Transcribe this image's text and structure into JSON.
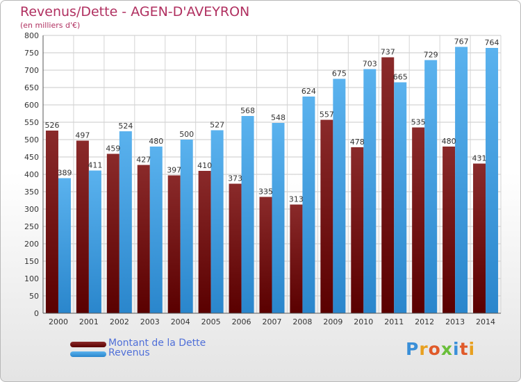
{
  "header": {
    "title": "Revenus/Dette - AGEN-D'AVEYRON",
    "subtitle": "(en milliers d'€)"
  },
  "legend": [
    {
      "label": "Montant de la Dette",
      "color": "#7a1a1a"
    },
    {
      "label": "Revenus",
      "color": "#3aa0e8"
    }
  ],
  "logo": {
    "text": "Proxiti",
    "letters": [
      {
        "ch": "P",
        "color": "#3a8fd8"
      },
      {
        "ch": "r",
        "color": "#e8a020"
      },
      {
        "ch": "o",
        "color": "#e05a2a"
      },
      {
        "ch": "x",
        "color": "#6abf3a"
      },
      {
        "ch": "i",
        "color": "#3a8fd8"
      },
      {
        "ch": "t",
        "color": "#e05a2a"
      },
      {
        "ch": "i",
        "color": "#e8a020"
      }
    ]
  },
  "chart_data": {
    "type": "bar",
    "categories": [
      "2000",
      "2001",
      "2002",
      "2003",
      "2004",
      "2005",
      "2006",
      "2007",
      "2008",
      "2009",
      "2010",
      "2011",
      "2012",
      "2013",
      "2014"
    ],
    "series": [
      {
        "name": "Montant de la Dette",
        "color": "#7a1a1a",
        "values": [
          526,
          497,
          459,
          427,
          397,
          410,
          373,
          335,
          313,
          557,
          478,
          737,
          535,
          480,
          431
        ]
      },
      {
        "name": "Revenus",
        "color": "#3aa0e8",
        "values": [
          389,
          411,
          524,
          480,
          500,
          527,
          568,
          548,
          624,
          675,
          703,
          665,
          729,
          767,
          764
        ]
      }
    ],
    "ylim": [
      0,
      800
    ],
    "ytick_step": 50,
    "yticks": [
      "0",
      "50",
      "100",
      "150",
      "200",
      "250",
      "300",
      "350",
      "400",
      "450",
      "500",
      "550",
      "600",
      "650",
      "700",
      "750",
      "800"
    ],
    "grid": true,
    "legend_position": "bottom-left"
  }
}
